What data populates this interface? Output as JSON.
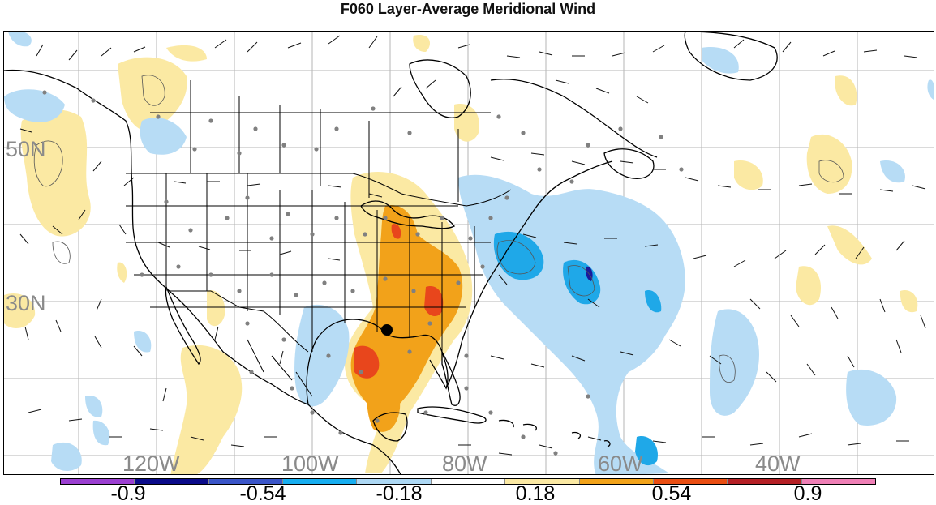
{
  "title": "F060 Layer-Average Meridional Wind",
  "map": {
    "lat_labels": [
      "50N",
      "30N"
    ],
    "lon_labels": [
      "120W",
      "100W",
      "80W",
      "60W",
      "40W"
    ],
    "shading_colors": {
      "neg_strong": "#1a1a9a",
      "neg_med": "#1fa8e8",
      "neg_light": "#b7dcf5",
      "pos_light": "#fbe9a3",
      "pos_med": "#f2a21a",
      "pos_strong": "#e8461c"
    },
    "marker": "black-dot"
  },
  "colorbar": {
    "colors": [
      "#9b3fd1",
      "#0b0b8a",
      "#3a55c8",
      "#17aef0",
      "#add8f4",
      "#ffffff",
      "#fbe9a3",
      "#f2a31a",
      "#ea4e12",
      "#b52025",
      "#ef7fb6"
    ],
    "tick_labels": [
      "-0.9",
      "-0.54",
      "-0.18",
      "0.18",
      "0.54",
      "0.9"
    ]
  }
}
